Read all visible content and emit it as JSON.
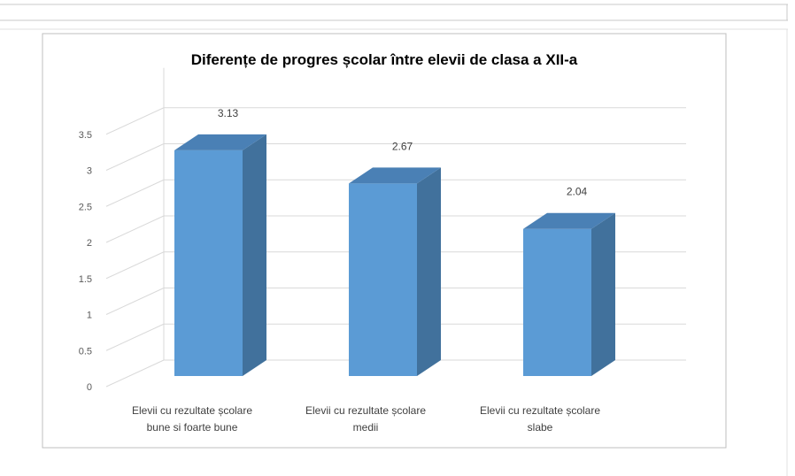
{
  "chart_data": {
    "type": "bar",
    "style": "3d-column",
    "title": "Diferențe de progres școlar între elevii de clasa a XII-a",
    "xlabel": "",
    "ylabel": "",
    "categories": [
      "Elevii cu rezultate școlare bune si foarte bune",
      "Elevii cu rezultate școlare medii",
      "Elevii cu rezultate școlare slabe"
    ],
    "category_lines": [
      [
        "Elevii cu rezultate școlare",
        "bune si foarte bune"
      ],
      [
        "Elevii cu rezultate școlare",
        "medii"
      ],
      [
        "Elevii cu rezultate școlare",
        "slabe"
      ]
    ],
    "values": [
      3.13,
      2.67,
      2.04
    ],
    "data_labels": [
      "3.13",
      "2.67",
      "2.04"
    ],
    "ylim": [
      0,
      3.5
    ],
    "yticks": [
      "0",
      "0.5",
      "1",
      "1.5",
      "2",
      "2.5",
      "3",
      "3.5"
    ],
    "grid": true,
    "legend": "none",
    "colors": {
      "front": "#5B9BD5",
      "side": "#41719C",
      "top": "#4A80B5",
      "grid": "#D9D9D9",
      "frame": "#BFBFBF"
    }
  }
}
